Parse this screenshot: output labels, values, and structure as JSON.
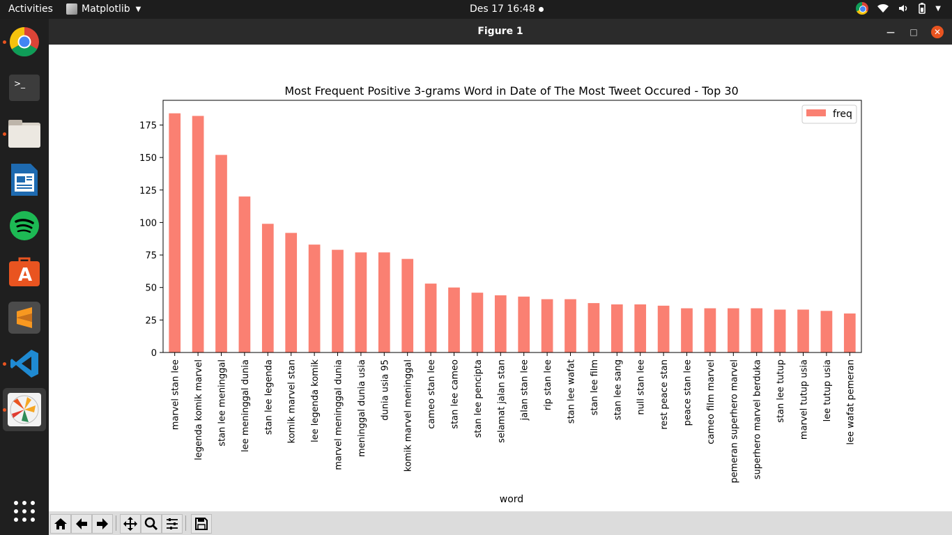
{
  "topbar": {
    "activities": "Activities",
    "app_name": "Matplotlib",
    "clock": "Des 17  16:48"
  },
  "window": {
    "title": "Figure 1"
  },
  "dock": {
    "items": [
      "chrome-icon",
      "terminal-icon",
      "files-icon",
      "writer-icon",
      "spotify-icon",
      "software-center-icon",
      "sublime-icon",
      "vscode-icon",
      "matplotlib-icon"
    ],
    "apps_grid_icon": "show-applications-icon"
  },
  "toolbar": {
    "buttons": [
      "home-icon",
      "back-icon",
      "forward-icon",
      "pan-icon",
      "zoom-icon",
      "configure-icon",
      "save-icon"
    ]
  },
  "colors": {
    "bar": "#fa8072",
    "accent": "#e95420"
  },
  "chart_data": {
    "type": "bar",
    "title": "Most Frequent Positive 3-grams Word in Date of The Most Tweet Occured - Top 30",
    "xlabel": "word",
    "ylabel": "",
    "ylim": [
      0,
      194
    ],
    "yticks": [
      0,
      25,
      50,
      75,
      100,
      125,
      150,
      175
    ],
    "legend": {
      "label": "freq",
      "position": "top-right"
    },
    "categories": [
      "marvel stan lee",
      "legenda komik marvel",
      "stan lee meninggal",
      "lee meninggal dunia",
      "stan lee legenda",
      "komik marvel stan",
      "lee legenda komik",
      "marvel meninggal dunia",
      "meninggal dunia usia",
      "dunia usia 95",
      "komik marvel meninggal",
      "cameo stan lee",
      "stan lee cameo",
      "stan lee pencipta",
      "selamat jalan stan",
      "jalan stan lee",
      "rip stan lee",
      "stan lee wafat",
      "stan lee film",
      "stan lee sang",
      "null stan lee",
      "rest peace stan",
      "peace stan lee",
      "cameo film marvel",
      "pemeran superhero marvel",
      "superhero marvel berduka",
      "stan lee tutup",
      "marvel tutup usia",
      "lee tutup usia",
      "lee wafat pemeran"
    ],
    "series": [
      {
        "name": "freq",
        "values": [
          184,
          182,
          152,
          120,
          99,
          92,
          83,
          79,
          77,
          77,
          72,
          53,
          50,
          46,
          44,
          43,
          41,
          41,
          38,
          37,
          37,
          36,
          34,
          34,
          34,
          34,
          33,
          33,
          32,
          30
        ]
      }
    ]
  }
}
